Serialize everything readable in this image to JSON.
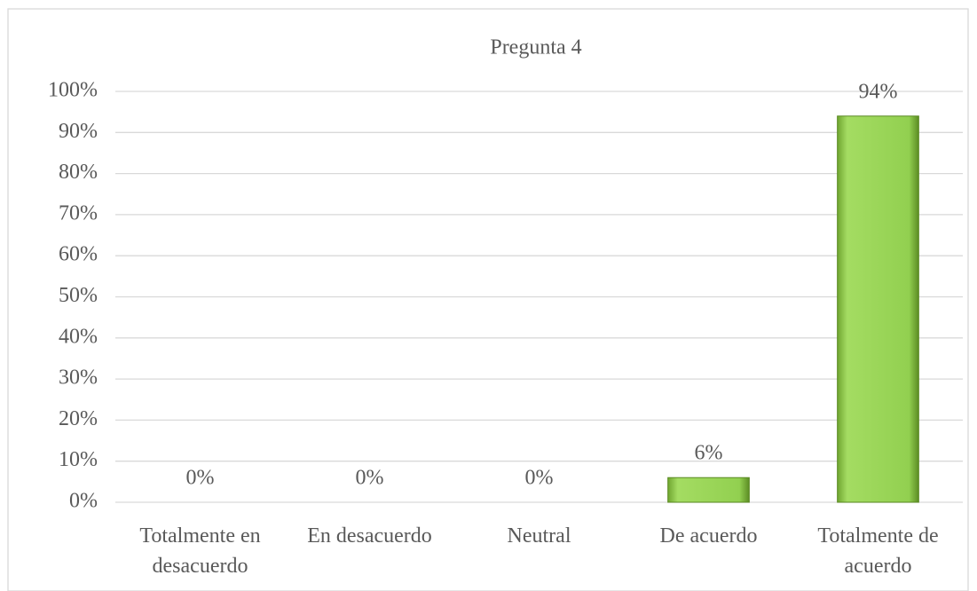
{
  "chart_data": {
    "type": "bar",
    "title": "Pregunta 4",
    "categories": [
      "Totalmente en desacuerdo",
      "En desacuerdo",
      "Neutral",
      "De acuerdo",
      "Totalmente de acuerdo"
    ],
    "values": [
      0,
      0,
      0,
      6,
      94
    ],
    "value_labels": [
      "0%",
      "0%",
      "0%",
      "6%",
      "94%"
    ],
    "color": "#92d050",
    "ylim": [
      0,
      100
    ],
    "yticks": [
      {
        "value": 0,
        "label": "0%"
      },
      {
        "value": 10,
        "label": "10%"
      },
      {
        "value": 20,
        "label": "20%"
      },
      {
        "value": 30,
        "label": "30%"
      },
      {
        "value": 40,
        "label": "40%"
      },
      {
        "value": 50,
        "label": "50%"
      },
      {
        "value": 60,
        "label": "60%"
      },
      {
        "value": 70,
        "label": "70%"
      },
      {
        "value": 80,
        "label": "80%"
      },
      {
        "value": 90,
        "label": "90%"
      },
      {
        "value": 100,
        "label": "100%"
      }
    ],
    "grid": true
  }
}
